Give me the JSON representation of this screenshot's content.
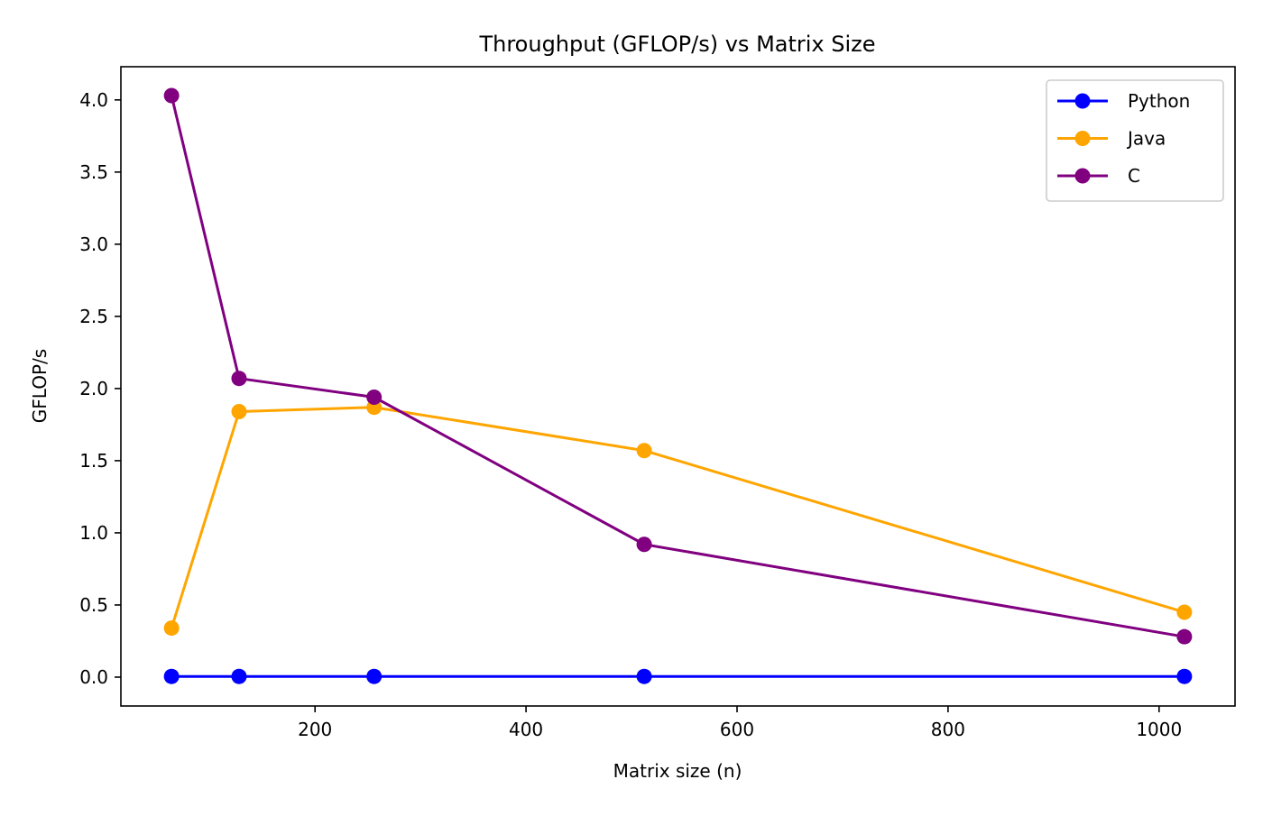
{
  "chart_data": {
    "type": "line",
    "title": "Throughput (GFLOP/s) vs Matrix Size",
    "xlabel": "Matrix size (n)",
    "ylabel": "GFLOP/s",
    "x": [
      64,
      128,
      256,
      512,
      1024
    ],
    "xlim": [
      16,
      1072
    ],
    "ylim": [
      -0.2,
      4.23
    ],
    "xticks": [
      200,
      400,
      600,
      800,
      1000
    ],
    "xtick_labels": [
      "200",
      "400",
      "600",
      "800",
      "1000"
    ],
    "yticks": [
      0.0,
      0.5,
      1.0,
      1.5,
      2.0,
      2.5,
      3.0,
      3.5,
      4.0
    ],
    "ytick_labels": [
      "0.0",
      "0.5",
      "1.0",
      "1.5",
      "2.0",
      "2.5",
      "3.0",
      "3.5",
      "4.0"
    ],
    "grid": false,
    "legend_position": "top-right",
    "series": [
      {
        "name": "Python",
        "color": "#0000ff",
        "marker": "circle",
        "values": [
          0.005,
          0.005,
          0.005,
          0.005,
          0.005
        ]
      },
      {
        "name": "Java",
        "color": "#ffa500",
        "marker": "circle",
        "values": [
          0.34,
          1.84,
          1.87,
          1.57,
          0.45
        ]
      },
      {
        "name": "C",
        "color": "#800080",
        "marker": "circle",
        "values": [
          4.03,
          2.07,
          1.94,
          0.92,
          0.28
        ]
      }
    ]
  }
}
